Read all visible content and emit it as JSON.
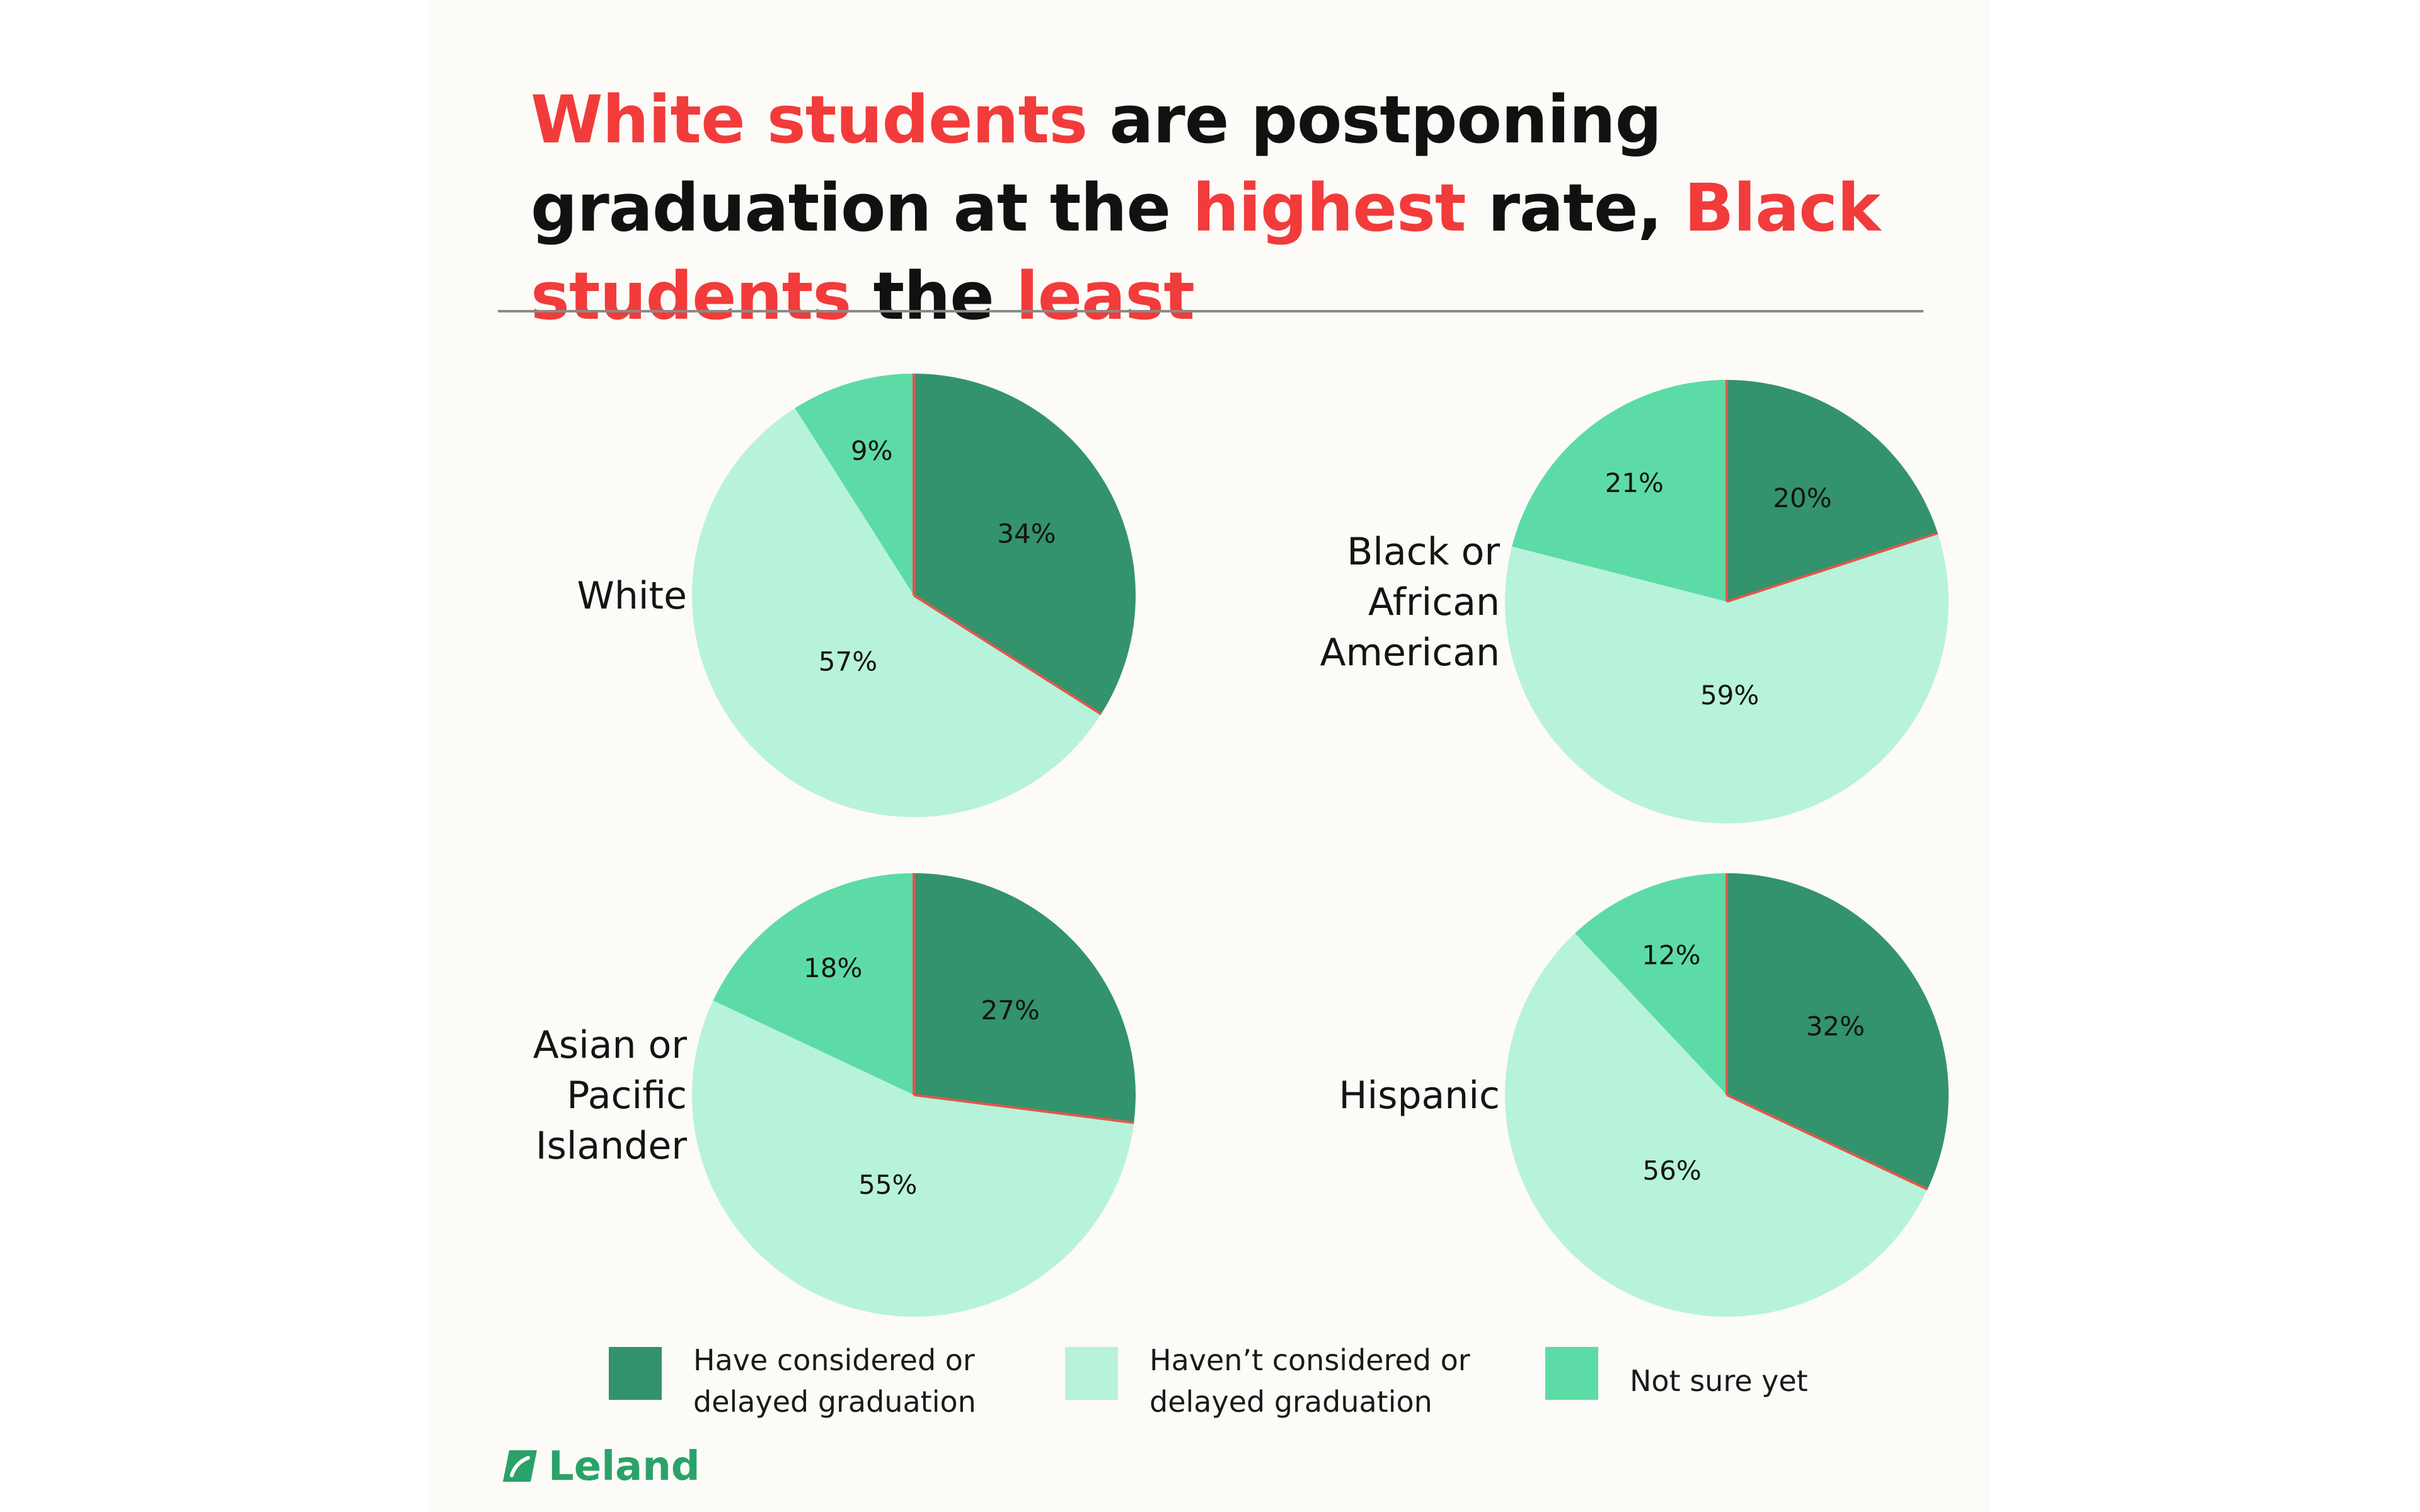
{
  "title": {
    "parts": [
      {
        "text": "White students",
        "highlight": true
      },
      {
        "text": " are postponing graduation at the ",
        "highlight": false
      },
      {
        "text": "highest",
        "highlight": true
      },
      {
        "text": " rate, ",
        "highlight": false
      },
      {
        "text": "Black students",
        "highlight": true
      },
      {
        "text": " the ",
        "highlight": false
      },
      {
        "text": "least",
        "highlight": true
      }
    ]
  },
  "colors": {
    "have_considered": "#33936c",
    "havent_considered": "#b7f3da",
    "not_sure": "#5ddba7",
    "highlight_text": "#f23b3b",
    "divider_red": "#e2574c",
    "brand": "#2aa26a"
  },
  "chart_data": [
    {
      "type": "pie",
      "group": "White",
      "label_lines": [
        "White"
      ],
      "slices": [
        {
          "name": "Have considered or delayed graduation",
          "value": 34,
          "label": "34%"
        },
        {
          "name": "Haven’t considered or delayed graduation",
          "value": 57,
          "label": "57%"
        },
        {
          "name": "Not sure yet",
          "value": 9,
          "label": "9%"
        }
      ]
    },
    {
      "type": "pie",
      "group": "Black or African American",
      "label_lines": [
        "Black or",
        "African",
        "American"
      ],
      "slices": [
        {
          "name": "Have considered or delayed graduation",
          "value": 20,
          "label": "20%"
        },
        {
          "name": "Haven’t considered or delayed graduation",
          "value": 59,
          "label": "59%"
        },
        {
          "name": "Not sure yet",
          "value": 21,
          "label": "21%"
        }
      ]
    },
    {
      "type": "pie",
      "group": "Asian or Pacific Islander",
      "label_lines": [
        "Asian or",
        "Pacific",
        "Islander"
      ],
      "slices": [
        {
          "name": "Have considered or delayed graduation",
          "value": 27,
          "label": "27%"
        },
        {
          "name": "Haven’t considered or delayed graduation",
          "value": 55,
          "label": "55%"
        },
        {
          "name": "Not sure yet",
          "value": 18,
          "label": "18%"
        }
      ]
    },
    {
      "type": "pie",
      "group": "Hispanic",
      "label_lines": [
        "Hispanic"
      ],
      "slices": [
        {
          "name": "Have considered or delayed graduation",
          "value": 32,
          "label": "32%"
        },
        {
          "name": "Haven’t considered or delayed graduation",
          "value": 56,
          "label": "56%"
        },
        {
          "name": "Not sure yet",
          "value": 12,
          "label": "12%"
        }
      ]
    }
  ],
  "legend": [
    {
      "label": "Have considered or\ndelayed graduation",
      "color_key": "have_considered"
    },
    {
      "label": "Haven’t considered or\ndelayed graduation",
      "color_key": "havent_considered"
    },
    {
      "label": "Not sure yet",
      "color_key": "not_sure"
    }
  ],
  "brand": {
    "name": "Leland",
    "icon": "leland-logo-icon"
  }
}
